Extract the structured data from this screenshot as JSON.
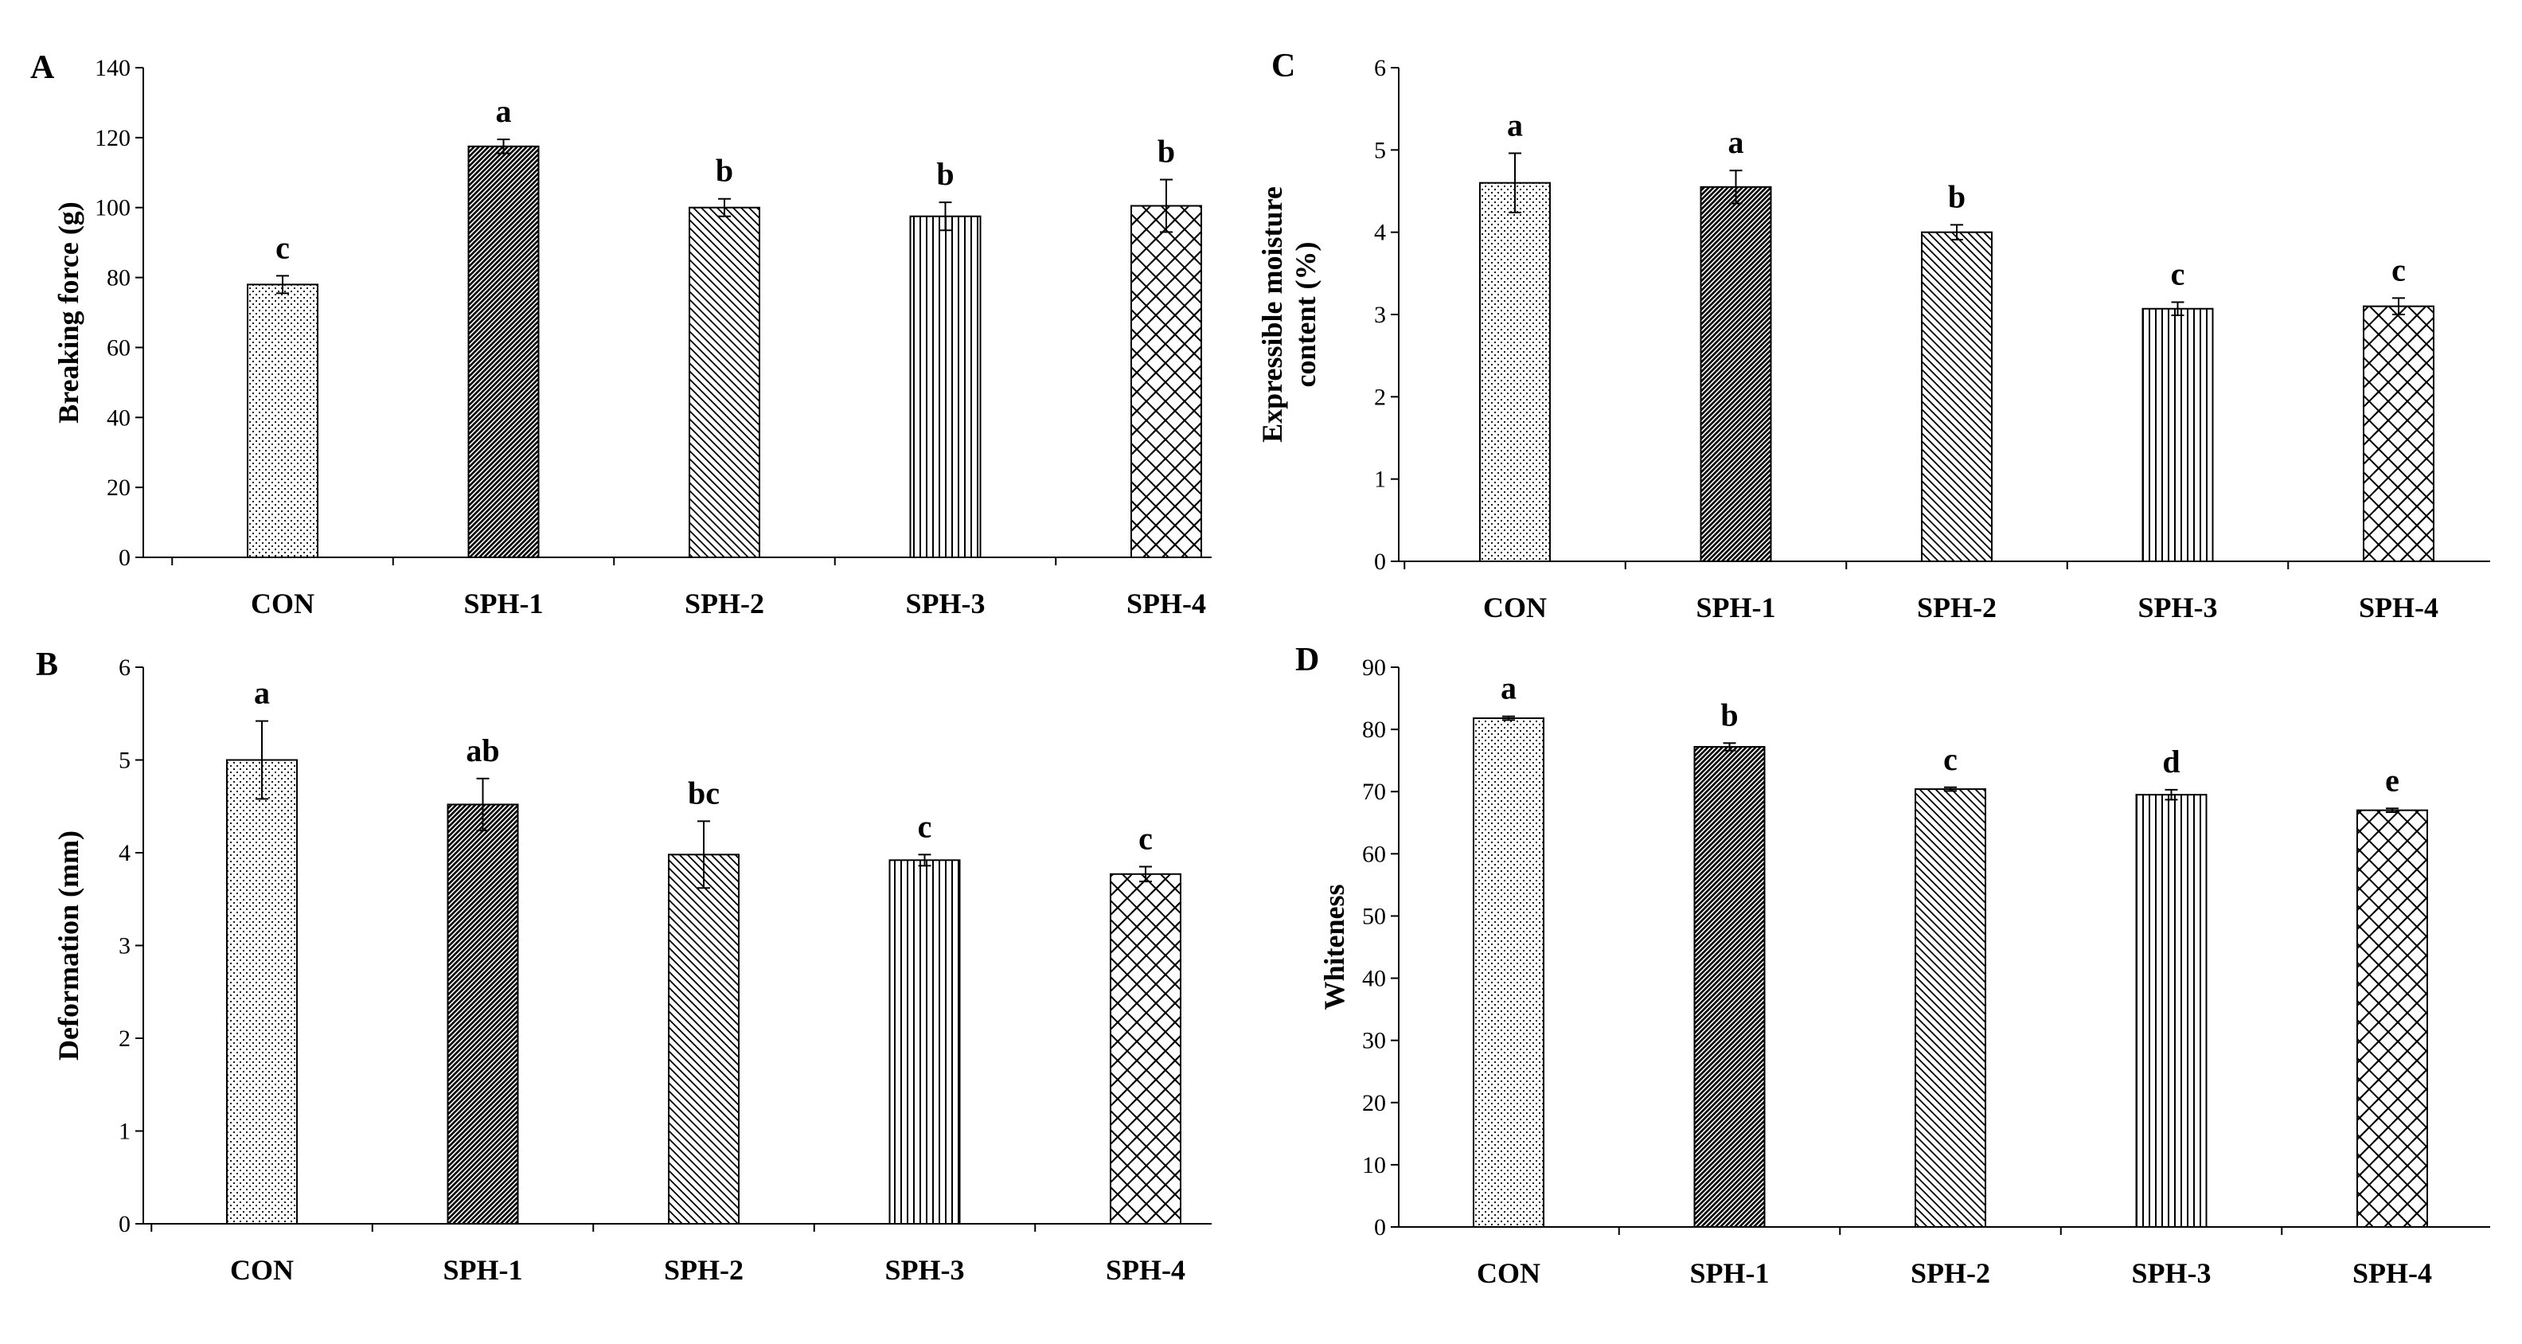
{
  "categories": [
    "CON",
    "SPH-1",
    "SPH-2",
    "SPH-3",
    "SPH-4"
  ],
  "patterns": [
    "dots",
    "dense-diagonal",
    "diagonal",
    "vertical",
    "crosshatch"
  ],
  "colors": {
    "ink": "#000000",
    "background": "#ffffff"
  },
  "chart_data": [
    {
      "panel": "A",
      "type": "bar",
      "categories": [
        "CON",
        "SPH-1",
        "SPH-2",
        "SPH-3",
        "SPH-4"
      ],
      "values": [
        78,
        117.5,
        100,
        97.5,
        100.5
      ],
      "errors": [
        2.5,
        2,
        2.5,
        4,
        7.5
      ],
      "significance": [
        "c",
        "a",
        "b",
        "b",
        "b"
      ],
      "ylabel": "Breaking force (g)",
      "ylim": [
        0,
        140
      ],
      "yticks": [
        "0",
        "20",
        "40",
        "60",
        "80",
        "100",
        "120",
        "140"
      ]
    },
    {
      "panel": "B",
      "type": "bar",
      "categories": [
        "CON",
        "SPH-1",
        "SPH-2",
        "SPH-3",
        "SPH-4"
      ],
      "values": [
        5.0,
        4.52,
        3.98,
        3.92,
        3.77
      ],
      "errors": [
        0.42,
        0.28,
        0.36,
        0.06,
        0.08
      ],
      "significance": [
        "a",
        "ab",
        "bc",
        "c",
        "c"
      ],
      "ylabel": "Deformation (mm)",
      "ylim": [
        0,
        6
      ],
      "yticks": [
        "0",
        "1",
        "2",
        "3",
        "4",
        "5",
        "6"
      ]
    },
    {
      "panel": "C",
      "type": "bar",
      "categories": [
        "CON",
        "SPH-1",
        "SPH-2",
        "SPH-3",
        "SPH-4"
      ],
      "values": [
        4.6,
        4.55,
        4.0,
        3.07,
        3.1
      ],
      "errors": [
        0.36,
        0.2,
        0.09,
        0.08,
        0.1
      ],
      "significance": [
        "a",
        "a",
        "b",
        "c",
        "c"
      ],
      "ylabel_lines": [
        "Expressible moisture",
        "content (%)"
      ],
      "ylim": [
        0,
        6
      ],
      "yticks": [
        "0",
        "1",
        "2",
        "3",
        "4",
        "5",
        "6"
      ]
    },
    {
      "panel": "D",
      "type": "bar",
      "categories": [
        "CON",
        "SPH-1",
        "SPH-2",
        "SPH-3",
        "SPH-4"
      ],
      "values": [
        81.8,
        77.2,
        70.4,
        69.5,
        67.0
      ],
      "errors": [
        0.3,
        0.6,
        0.3,
        0.8,
        0.3
      ],
      "significance": [
        "a",
        "b",
        "c",
        "d",
        "e"
      ],
      "ylabel": "Whiteness",
      "ylim": [
        0,
        90
      ],
      "yticks": [
        "0",
        "10",
        "20",
        "30",
        "40",
        "50",
        "60",
        "70",
        "80",
        "90"
      ]
    }
  ]
}
